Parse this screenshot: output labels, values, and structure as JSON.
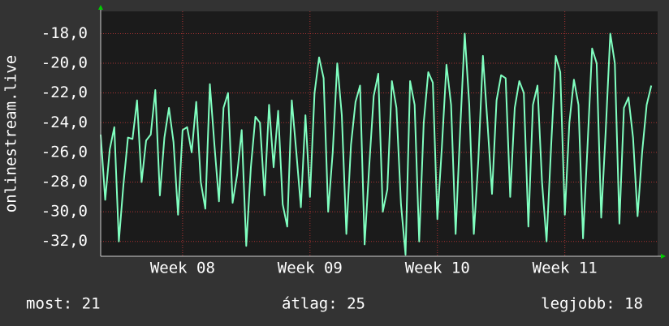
{
  "chart_data": {
    "type": "line",
    "y_label": "onlinestream.live",
    "x": [
      0,
      0.25,
      0.5,
      0.75,
      1,
      1.25,
      1.5,
      1.75,
      2,
      2.25,
      2.5,
      2.75,
      3,
      3.25,
      3.5,
      3.75,
      4,
      4.25,
      4.5,
      4.75,
      5,
      5.25,
      5.5,
      5.75,
      6,
      6.25,
      6.5,
      6.75,
      7,
      7.25,
      7.5,
      7.75,
      8,
      8.25,
      8.5,
      8.75,
      9,
      9.25,
      9.5,
      9.75,
      10,
      10.25,
      10.5,
      10.75,
      11,
      11.25,
      11.5,
      11.75,
      12,
      12.25,
      12.5,
      12.75,
      13,
      13.25,
      13.5,
      13.75,
      14,
      14.25,
      14.5,
      14.75,
      15,
      15.25,
      15.5,
      15.75,
      16,
      16.25,
      16.5,
      16.75,
      17,
      17.25,
      17.5,
      17.75,
      18,
      18.25,
      18.5,
      18.75,
      19,
      19.25,
      19.5,
      19.75,
      20,
      20.25,
      20.5,
      20.75,
      21,
      21.25,
      21.5,
      21.75,
      22,
      22.25,
      22.5,
      22.75,
      23,
      23.25,
      23.5,
      23.75,
      24,
      24.25,
      24.5,
      24.75,
      25,
      25.25,
      25.5,
      25.75,
      26,
      26.25,
      26.5,
      26.75,
      27,
      27.25,
      27.5,
      27.75,
      28,
      28.25,
      28.5,
      28.75,
      29,
      29.25,
      29.5,
      29.75,
      30,
      30.25
    ],
    "series": [
      {
        "color": "#80ffc0",
        "values": [
          -24.8,
          -29.2,
          -25.8,
          -24.3,
          -32.0,
          -28.2,
          -25.0,
          -25.1,
          -22.5,
          -28.0,
          -25.2,
          -24.8,
          -21.8,
          -28.9,
          -25.0,
          -23.0,
          -25.3,
          -30.2,
          -24.5,
          -24.3,
          -26.0,
          -22.6,
          -28.0,
          -29.8,
          -21.4,
          -25.5,
          -29.3,
          -23.0,
          -22.0,
          -29.4,
          -27.5,
          -24.5,
          -32.3,
          -27.0,
          -23.6,
          -24.0,
          -28.9,
          -22.8,
          -27.0,
          -23.2,
          -29.5,
          -31.0,
          -22.5,
          -26.0,
          -29.7,
          -23.5,
          -29.0,
          -22.0,
          -19.6,
          -21.0,
          -30.0,
          -26.0,
          -20.0,
          -23.5,
          -31.5,
          -25.5,
          -22.6,
          -21.5,
          -32.2,
          -27.0,
          -22.2,
          -20.7,
          -30.0,
          -28.5,
          -21.2,
          -23.0,
          -29.5,
          -32.9,
          -21.2,
          -22.8,
          -32.0,
          -24.0,
          -20.6,
          -21.3,
          -30.5,
          -25.6,
          -20.1,
          -22.8,
          -31.5,
          -24.5,
          -18.0,
          -22.8,
          -31.5,
          -26.5,
          -19.5,
          -24.0,
          -28.8,
          -22.5,
          -20.8,
          -21.0,
          -29.0,
          -23.0,
          -21.2,
          -22.0,
          -31.0,
          -22.8,
          -21.5,
          -28.0,
          -32.0,
          -25.5,
          -19.5,
          -20.6,
          -30.2,
          -24.0,
          -21.1,
          -22.8,
          -31.8,
          -25.5,
          -19.0,
          -20.0,
          -30.4,
          -24.5,
          -18.0,
          -20.0,
          -30.8,
          -23.0,
          -22.3,
          -25.0,
          -30.3,
          -26.0,
          -22.8,
          -21.5
        ]
      }
    ],
    "xlim": [
      0,
      30.6
    ],
    "xticks": [
      {
        "value": 4.5,
        "label": "Week 08"
      },
      {
        "value": 11.5,
        "label": "Week 09"
      },
      {
        "value": 18.5,
        "label": "Week 10"
      },
      {
        "value": 25.5,
        "label": "Week 11"
      }
    ],
    "ylim": [
      -33,
      -16.5
    ],
    "yticks": [
      {
        "value": -32,
        "label": "-32,0"
      },
      {
        "value": -30,
        "label": "-30,0"
      },
      {
        "value": -28,
        "label": "-28,0"
      },
      {
        "value": -26,
        "label": "-26,0"
      },
      {
        "value": -24,
        "label": "-24,0"
      },
      {
        "value": -22,
        "label": "-22,0"
      },
      {
        "value": -20,
        "label": "-20,0"
      },
      {
        "value": -18,
        "label": "-18,0"
      }
    ],
    "grid": true,
    "footer": [
      "most: 21",
      "átlag: 25",
      "legjobb: 18"
    ]
  }
}
